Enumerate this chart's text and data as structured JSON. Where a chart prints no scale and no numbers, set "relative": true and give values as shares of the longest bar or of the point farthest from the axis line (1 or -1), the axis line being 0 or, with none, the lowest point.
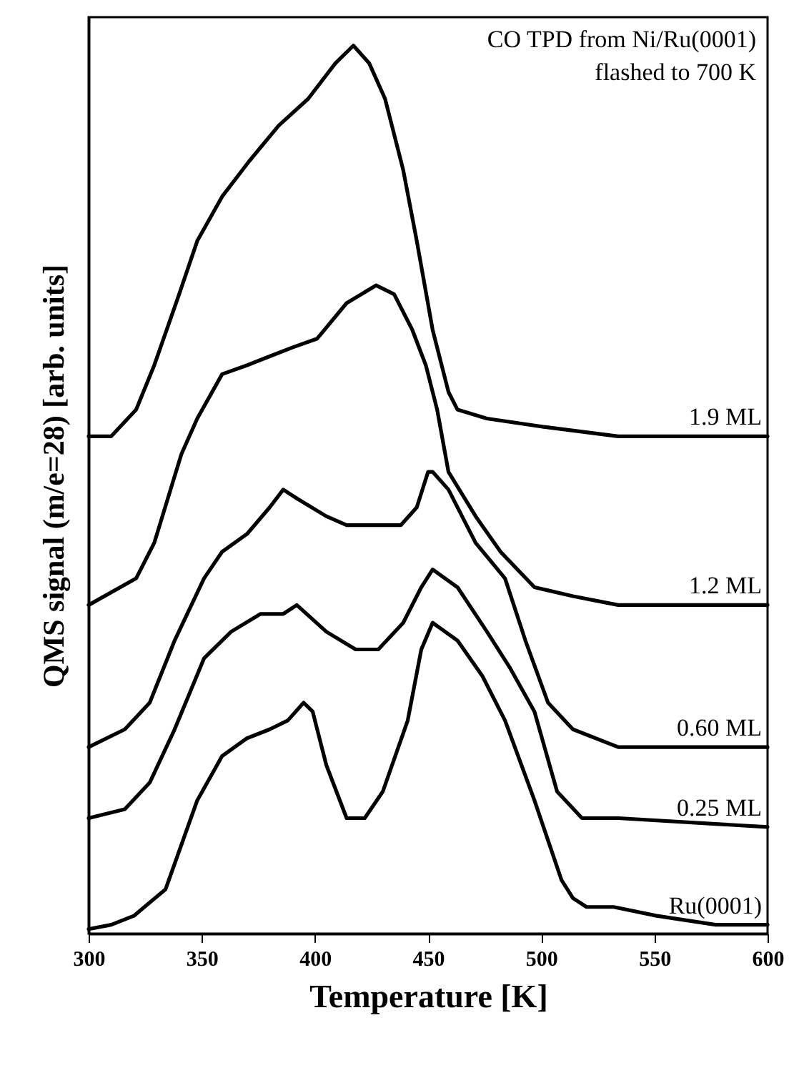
{
  "chart_data": {
    "type": "line",
    "relative": true,
    "xlabel": "Temperature [K]",
    "ylabel": "QMS signal (m/e=28) [arb. units]",
    "annotations": [
      "CO TPD from Ni/Ru(0001)",
      "flashed to 700 K"
    ],
    "xlim": [
      300,
      600
    ],
    "xticks": [
      300,
      350,
      400,
      450,
      500,
      550,
      600
    ],
    "line_style": "solid",
    "series": [
      {
        "name": "1.9 ML",
        "color": "#000000",
        "x": [
          300,
          310,
          321,
          329,
          340,
          348,
          359,
          371,
          384,
          397,
          409,
          417,
          424,
          431,
          439,
          445,
          452,
          459,
          463,
          476,
          503,
          534,
          600
        ],
        "values": [
          0.56,
          0.56,
          0.59,
          0.64,
          0.72,
          0.78,
          0.83,
          0.87,
          0.91,
          0.94,
          0.98,
          1,
          0.98,
          0.94,
          0.86,
          0.78,
          0.68,
          0.61,
          0.59,
          0.58,
          0.57,
          0.56,
          0.56
        ]
      },
      {
        "name": "1.2 ML",
        "color": "#000000",
        "x": [
          300,
          321,
          329,
          341,
          348,
          359,
          370,
          380,
          390,
          401,
          414,
          427,
          435,
          443,
          449,
          454,
          459,
          471,
          482,
          497,
          514,
          534,
          600
        ],
        "values": [
          0.37,
          0.4,
          0.44,
          0.54,
          0.58,
          0.63,
          0.64,
          0.65,
          0.66,
          0.67,
          0.71,
          0.73,
          0.72,
          0.68,
          0.64,
          0.59,
          0.52,
          0.47,
          0.43,
          0.39,
          0.38,
          0.37,
          0.37
        ]
      },
      {
        "name": "0.60 ML",
        "color": "#000000",
        "x": [
          300,
          316,
          327,
          338,
          351,
          359,
          370,
          380,
          386,
          392,
          405,
          414,
          426,
          438,
          445,
          450,
          452,
          459,
          471,
          484,
          493,
          503,
          514,
          534,
          600
        ],
        "values": [
          0.21,
          0.23,
          0.26,
          0.33,
          0.4,
          0.43,
          0.45,
          0.48,
          0.5,
          0.49,
          0.47,
          0.46,
          0.46,
          0.46,
          0.48,
          0.52,
          0.52,
          0.5,
          0.44,
          0.4,
          0.33,
          0.26,
          0.23,
          0.21,
          0.21
        ]
      },
      {
        "name": "0.25 ML",
        "color": "#000000",
        "x": [
          300,
          316,
          327,
          338,
          351,
          363,
          376,
          386,
          392,
          405,
          418,
          428,
          439,
          447,
          452,
          463,
          476,
          486,
          497,
          507,
          518,
          534,
          600
        ],
        "values": [
          0.13,
          0.14,
          0.17,
          0.23,
          0.31,
          0.34,
          0.36,
          0.36,
          0.37,
          0.34,
          0.32,
          0.32,
          0.35,
          0.39,
          0.41,
          0.39,
          0.34,
          0.3,
          0.25,
          0.16,
          0.13,
          0.13,
          0.12
        ]
      },
      {
        "name": "Ru(0001)",
        "color": "#000000",
        "x": [
          300,
          310,
          320,
          334,
          348,
          359,
          370,
          380,
          388,
          395,
          399,
          405,
          414,
          422,
          430,
          441,
          447,
          452,
          463,
          474,
          484,
          497,
          509,
          514,
          520,
          532,
          551,
          577,
          600
        ],
        "values": [
          0.005,
          0.01,
          0.02,
          0.05,
          0.15,
          0.2,
          0.22,
          0.23,
          0.24,
          0.26,
          0.25,
          0.19,
          0.13,
          0.13,
          0.16,
          0.24,
          0.32,
          0.35,
          0.33,
          0.29,
          0.24,
          0.15,
          0.06,
          0.04,
          0.03,
          0.03,
          0.02,
          0.01,
          0.01
        ]
      }
    ]
  }
}
